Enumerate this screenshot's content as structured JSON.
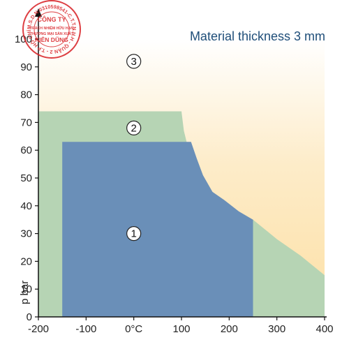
{
  "chart_data": {
    "type": "area",
    "title": "Material thickness  3 mm",
    "xlabel": "°C",
    "ylabel": "p bar",
    "xlim": [
      -200,
      400
    ],
    "ylim": [
      0,
      100
    ],
    "xticks": [
      {
        "value": -200,
        "label": "-200"
      },
      {
        "value": -100,
        "label": "-100"
      },
      {
        "value": 0,
        "label": "0°C"
      },
      {
        "value": 100,
        "label": "100"
      },
      {
        "value": 200,
        "label": "200"
      },
      {
        "value": 300,
        "label": "300"
      },
      {
        "value": 400,
        "label": "400"
      }
    ],
    "yticks": [
      0,
      10,
      20,
      30,
      40,
      50,
      60,
      70,
      80,
      90,
      100
    ],
    "grid": false,
    "zones": [
      {
        "label": "3",
        "color": "#fde3b0",
        "label_at": {
          "x": 0,
          "y": 92
        },
        "boundary": [
          [
            -200,
            0
          ],
          [
            -200,
            100
          ],
          [
            400,
            100
          ],
          [
            400,
            15
          ]
        ]
      },
      {
        "label": "2",
        "color": "#b6d4b4",
        "label_at": {
          "x": 0,
          "y": 68
        },
        "boundary": [
          [
            -200,
            0
          ],
          [
            -200,
            74
          ],
          [
            100,
            74
          ],
          [
            105,
            67
          ],
          [
            115,
            60
          ],
          [
            130,
            52
          ],
          [
            150,
            46
          ],
          [
            180,
            42
          ],
          [
            215,
            38
          ],
          [
            250,
            35
          ],
          [
            300,
            28
          ],
          [
            350,
            22
          ],
          [
            400,
            15
          ],
          [
            400,
            0
          ]
        ]
      },
      {
        "label": "1",
        "color": "#6a8fb8",
        "label_at": {
          "x": 0,
          "y": 30
        },
        "boundary": [
          [
            -150,
            0
          ],
          [
            -150,
            63
          ],
          [
            120,
            63
          ],
          [
            132,
            57
          ],
          [
            145,
            51
          ],
          [
            165,
            45
          ],
          [
            190,
            42
          ],
          [
            220,
            38
          ],
          [
            250,
            35
          ],
          [
            250,
            0
          ]
        ]
      }
    ]
  },
  "stamp": {
    "color": "#d9252a",
    "ring_text": "M.S.D.N:0310598541-C.T.T.N.H.H - QUẬN 2 - T.P HỒ CHÍ MINH -",
    "line1": "CÔNG TY",
    "line2": "TRÁCH NHIỆM HỮU HẠN",
    "line3": "THƯƠNG MẠI SẢN XUẤT",
    "line4": "KIÊN DŨNG"
  }
}
